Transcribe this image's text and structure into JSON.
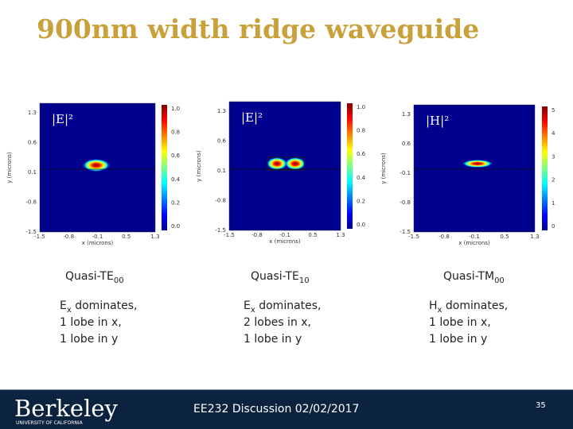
{
  "title": "900nm width ridge waveguide",
  "panels": [
    {
      "field_label": "|E|²",
      "x_label": "x (microns)",
      "y_label": "y (microns)",
      "y_ticks": [
        "1.3",
        "0.6",
        "0.1",
        "-0.8",
        "-1.5"
      ],
      "x_ticks": [
        "-1.5",
        "-0.8",
        "-0.1",
        "0.5",
        "1.3"
      ],
      "colorbar_ticks": [
        "1.0",
        "0.8",
        "0.6",
        "0.4",
        "0.2",
        "0.0"
      ],
      "mode": {
        "text": "Quasi-TE",
        "sub": "00"
      },
      "description": [
        {
          "text": "E",
          "sub": "x",
          "rest": " dominates,"
        },
        {
          "text": "1 lobe in x,"
        },
        {
          "text": "1 lobe in y"
        }
      ]
    },
    {
      "field_label": "|E|²",
      "x_label": "x (microns)",
      "y_label": "y (microns)",
      "y_ticks": [
        "1.3",
        "0.6",
        "0.1",
        "-0.8",
        "-1.5"
      ],
      "x_ticks": [
        "-1.5",
        "-0.8",
        "-0.1",
        "0.5",
        "1.3"
      ],
      "colorbar_ticks": [
        "1.0",
        "0.8",
        "0.6",
        "0.4",
        "0.2",
        "0.0"
      ],
      "mode": {
        "text": "Quasi-TE",
        "sub": "10"
      },
      "description": [
        {
          "text": "E",
          "sub": "x",
          "rest": " dominates,"
        },
        {
          "text": "2 lobes in x,"
        },
        {
          "text": "1 lobe in y"
        }
      ]
    },
    {
      "field_label": "|H|²",
      "x_label": "x (microns)",
      "y_label": "y (microns)",
      "y_ticks": [
        "1.3",
        "0.6",
        "-0.1",
        "-0.8",
        "-1.5"
      ],
      "x_ticks": [
        "-1.5",
        "-0.8",
        "-0.1",
        "0.5",
        "1.3"
      ],
      "colorbar_ticks": [
        "5",
        "4",
        "3",
        "2",
        "1",
        "0"
      ],
      "mode": {
        "text": "Quasi-TM",
        "sub": "00"
      },
      "description": [
        {
          "text": "H",
          "sub": "x",
          "rest": " dominates,"
        },
        {
          "text": "1 lobe in x,"
        },
        {
          "text": "1 lobe in y"
        }
      ]
    }
  ],
  "footer": {
    "logo": "Berkeley",
    "logo_sub": "UNIVERSITY OF CALIFORNIA",
    "text": "EE232 Discussion 02/02/2017",
    "page": "35"
  }
}
